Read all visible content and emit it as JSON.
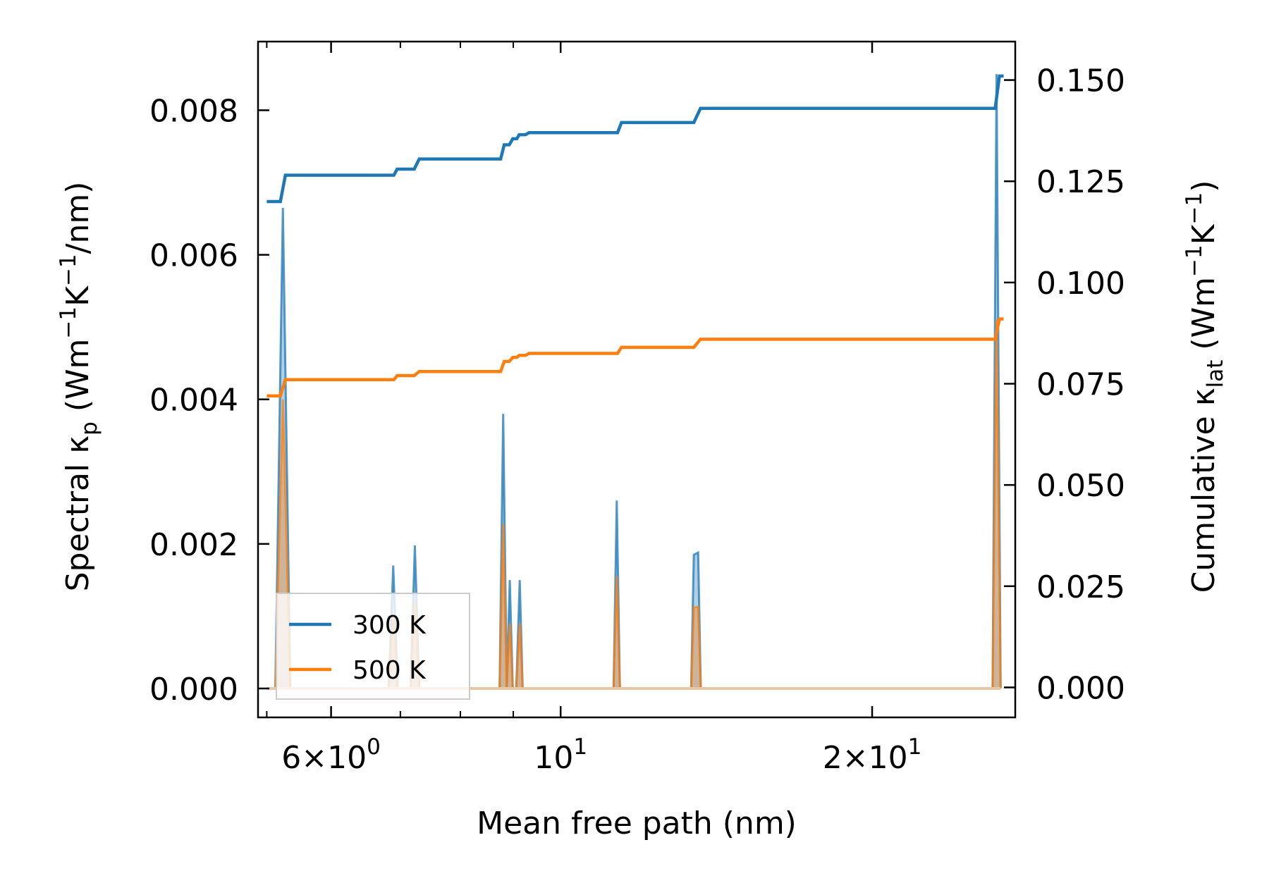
{
  "chart_data": {
    "type": "line",
    "xscale": "log",
    "xlabel": "Mean free path (nm)",
    "xlim": [
      5.1,
      27.5
    ],
    "left_axis": {
      "label_prefix": "Spectral κ",
      "label_sub": "p",
      "label_unit_open": " (Wm",
      "label_exp1": "−1",
      "label_mid": "K",
      "label_exp2": "−1",
      "label_unit_close": "/nm)",
      "ylim": [
        -0.0004,
        0.00895
      ],
      "ticks": [
        0.0,
        0.002,
        0.004,
        0.006,
        0.008
      ],
      "tick_labels": [
        "0.000",
        "0.002",
        "0.004",
        "0.006",
        "0.008"
      ]
    },
    "right_axis": {
      "label_prefix": "Cumulative κ",
      "label_sub": "lat",
      "label_unit_open": " (Wm",
      "label_exp1": "−1",
      "label_mid": "K",
      "label_exp2": "−1",
      "label_unit_close": ")",
      "ylim": [
        -0.0074,
        0.1595
      ],
      "ticks": [
        0.0,
        0.025,
        0.05,
        0.075,
        0.1,
        0.125,
        0.15
      ],
      "tick_labels": [
        "0.000",
        "0.025",
        "0.050",
        "0.075",
        "0.100",
        "0.125",
        "0.150"
      ]
    },
    "x_major_ticks": [
      {
        "value": 6,
        "label_mantissa": "6",
        "label_times": "×",
        "label_base": "10",
        "label_exp": "0"
      },
      {
        "value": 10,
        "label_mantissa": "",
        "label_times": "",
        "label_base": "10",
        "label_exp": "1"
      },
      {
        "value": 20,
        "label_mantissa": "2",
        "label_times": "×",
        "label_base": "10",
        "label_exp": "1"
      }
    ],
    "x_minor_ticks": [
      5.2,
      7,
      8,
      9,
      30
    ],
    "legend": {
      "position": "lower-left",
      "entries": [
        {
          "label": "300 K",
          "color": "#1f77b4"
        },
        {
          "label": "500 K",
          "color": "#ff7f0e"
        }
      ]
    },
    "series": [
      {
        "name": "300 K",
        "color": "#1f77b4",
        "cumulative": {
          "x": [
            5.2,
            5.36,
            5.42,
            6.9,
            6.95,
            7.22,
            7.3,
            8.75,
            8.82,
            8.92,
            8.99,
            9.07,
            9.12,
            9.25,
            9.32,
            11.35,
            11.45,
            13.45,
            13.65,
            26.3,
            26.55,
            26.8
          ],
          "y": [
            0.12,
            0.12,
            0.1265,
            0.1265,
            0.128,
            0.128,
            0.1305,
            0.1305,
            0.134,
            0.134,
            0.1355,
            0.1355,
            0.1365,
            0.1365,
            0.137,
            0.137,
            0.1395,
            0.1395,
            0.143,
            0.143,
            0.151,
            0.151
          ]
        },
        "spectral": {
          "x": [
            5.2,
            5.3,
            5.39,
            5.48,
            6.82,
            6.89,
            6.96,
            7.16,
            7.23,
            7.3,
            8.73,
            8.8,
            8.87,
            8.93,
            8.99,
            9.06,
            9.13,
            9.19,
            9.26,
            11.25,
            11.33,
            11.41,
            13.37,
            13.45,
            13.58,
            13.66,
            26.15,
            26.38,
            26.62
          ],
          "y": [
            0.0,
            0.0,
            0.00665,
            0.0,
            0.0,
            0.0017,
            0.0,
            0.0,
            0.00198,
            0.0,
            0.0,
            0.0038,
            0.0,
            0.0015,
            0.0,
            0.0,
            0.0015,
            0.0,
            0.0,
            0.0,
            0.0026,
            0.0,
            0.0,
            0.00185,
            0.00188,
            0.0,
            0.0,
            0.0085,
            0.0
          ]
        }
      },
      {
        "name": "500 K",
        "color": "#ff7f0e",
        "cumulative": {
          "x": [
            5.2,
            5.36,
            5.42,
            6.9,
            6.95,
            7.22,
            7.3,
            8.75,
            8.82,
            8.92,
            8.99,
            9.07,
            9.12,
            9.25,
            9.32,
            11.35,
            11.45,
            13.45,
            13.65,
            26.3,
            26.55,
            26.8
          ],
          "y": [
            0.072,
            0.072,
            0.076,
            0.076,
            0.077,
            0.077,
            0.078,
            0.078,
            0.0805,
            0.0805,
            0.0815,
            0.0815,
            0.082,
            0.082,
            0.0825,
            0.0825,
            0.084,
            0.084,
            0.086,
            0.086,
            0.091,
            0.091
          ]
        },
        "spectral": {
          "x": [
            5.2,
            5.3,
            5.39,
            5.48,
            6.82,
            6.89,
            6.96,
            7.16,
            7.23,
            7.3,
            8.73,
            8.8,
            8.87,
            8.93,
            8.99,
            9.06,
            9.13,
            9.19,
            9.26,
            11.25,
            11.33,
            11.41,
            13.37,
            13.45,
            13.58,
            13.66,
            26.15,
            26.38,
            26.62
          ],
          "y": [
            0.0,
            0.0,
            0.004,
            0.0,
            0.0,
            0.001,
            0.0,
            0.0,
            0.0012,
            0.0,
            0.0,
            0.00228,
            0.0,
            0.0009,
            0.0,
            0.0,
            0.0009,
            0.0,
            0.0,
            0.0,
            0.00155,
            0.0,
            0.0,
            0.00112,
            0.00113,
            0.0,
            0.0,
            0.0051,
            0.0
          ]
        }
      }
    ]
  }
}
